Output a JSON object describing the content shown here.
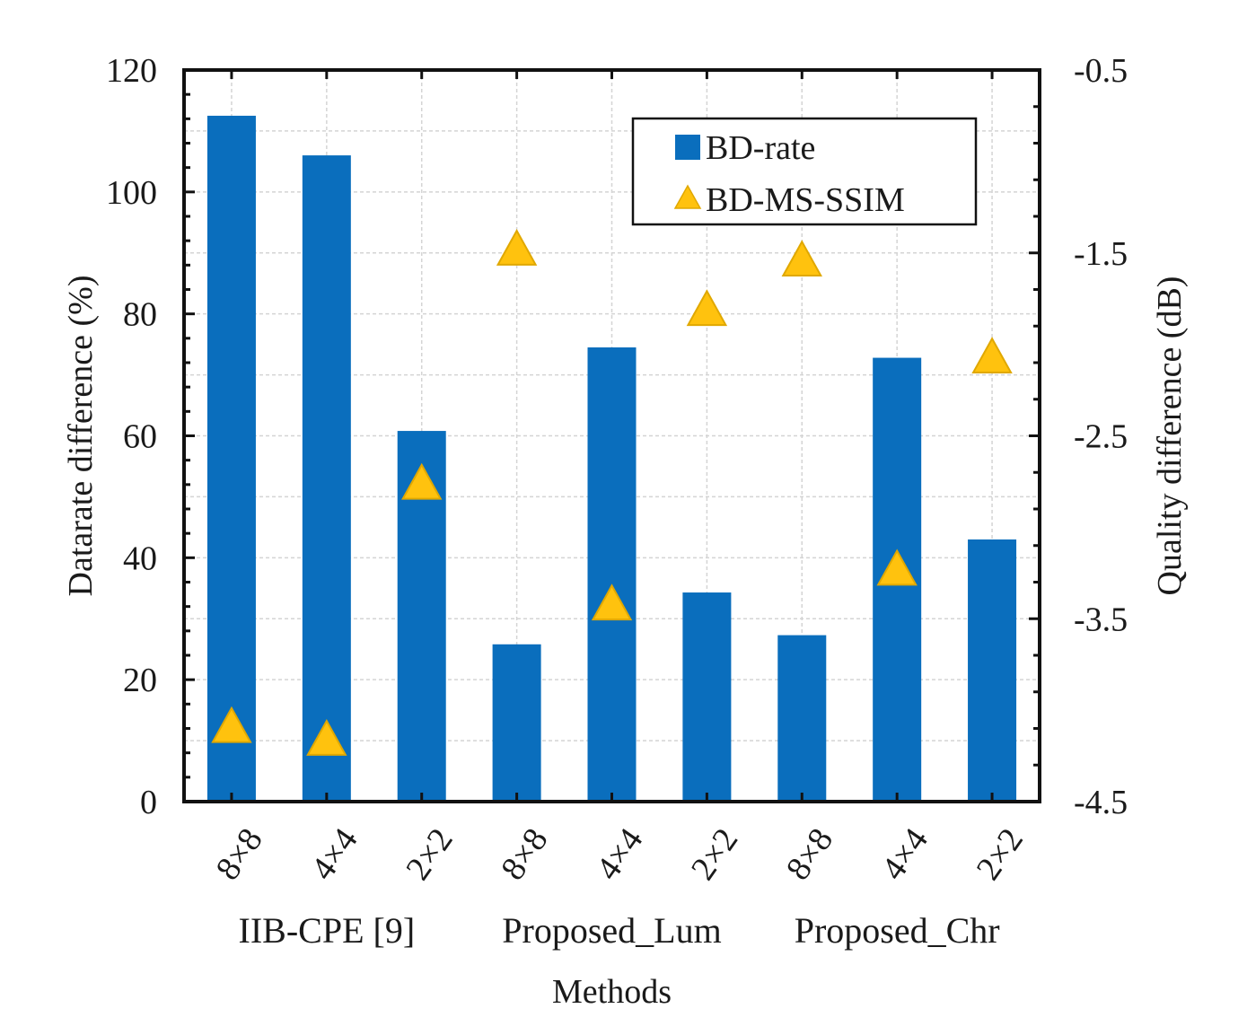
{
  "chart_data": {
    "type": "bar",
    "categories": [
      "8×8",
      "4×4",
      "2×2",
      "8×8",
      "4×4",
      "2×2",
      "8×8",
      "4×4",
      "2×2"
    ],
    "groups": [
      {
        "label": "IIB-CPE [9]",
        "start": 0,
        "end": 2
      },
      {
        "label": "Proposed_Lum",
        "start": 3,
        "end": 5
      },
      {
        "label": "Proposed_Chr",
        "start": 6,
        "end": 8
      }
    ],
    "series": [
      {
        "name": "BD-rate",
        "kind": "bar",
        "axis": "left",
        "values": [
          112.5,
          106.0,
          60.8,
          25.8,
          74.5,
          34.3,
          27.3,
          72.8,
          43.0
        ]
      },
      {
        "name": "BD-MS-SSIM",
        "kind": "marker",
        "axis": "right",
        "values": [
          -4.1,
          -4.17,
          -2.77,
          -1.49,
          -3.43,
          -1.82,
          -1.55,
          -3.24,
          -2.08
        ]
      }
    ],
    "xlabel": "Methods",
    "ylabel": "Datarate difference (%)",
    "y2label": "Quality difference (dB)",
    "ylim": [
      0,
      120
    ],
    "y2lim": [
      -4.5,
      -0.5
    ],
    "yticks": [
      "0",
      "20",
      "40",
      "60",
      "80",
      "100",
      "120"
    ],
    "y2ticks": [
      "-4.5",
      "-3.5",
      "-2.5",
      "-1.5",
      "-0.5"
    ],
    "grid": true,
    "legend_position": "top-right",
    "colors": {
      "bar": "#0a6ebd",
      "marker": "#ffc20e",
      "marker_edge": "#e0a800"
    }
  }
}
